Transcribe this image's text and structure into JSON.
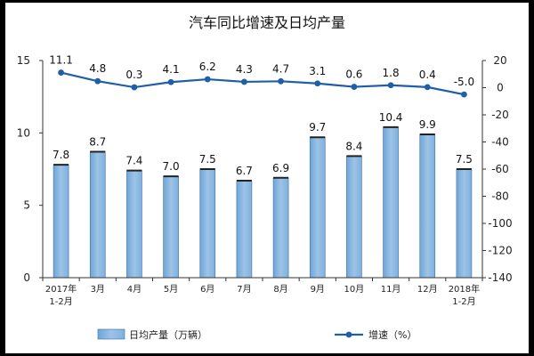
{
  "chart_data": {
    "type": "bar",
    "title": "汽车同比增速及日均产量",
    "categories": [
      [
        "2017年",
        "1-2月"
      ],
      [
        "3月"
      ],
      [
        "4月"
      ],
      [
        "5月"
      ],
      [
        "6月"
      ],
      [
        "7月"
      ],
      [
        "8月"
      ],
      [
        "9月"
      ],
      [
        "10月"
      ],
      [
        "11月"
      ],
      [
        "12月"
      ],
      [
        "2018年",
        "1-2月"
      ]
    ],
    "series": [
      {
        "name": "日均产量（万辆）",
        "type": "bar",
        "axis": "left",
        "values": [
          7.8,
          8.7,
          7.4,
          7.0,
          7.5,
          6.7,
          6.9,
          9.7,
          8.4,
          10.4,
          9.9,
          7.5
        ],
        "labels": [
          "7.8",
          "8.7",
          "7.4",
          "7.0",
          "7.5",
          "6.7",
          "6.9",
          "9.7",
          "8.4",
          "10.4",
          "9.9",
          "7.5"
        ],
        "color": "#9dc3e6"
      },
      {
        "name": "增速（%）",
        "type": "line",
        "axis": "right",
        "values": [
          11.1,
          4.8,
          0.3,
          4.1,
          6.2,
          4.3,
          4.7,
          3.1,
          0.6,
          1.8,
          0.4,
          -5.0
        ],
        "labels": [
          "11.1",
          "4.8",
          "0.3",
          "4.1",
          "6.2",
          "4.3",
          "4.7",
          "3.1",
          "0.6",
          "1.8",
          "0.4",
          "-5.0"
        ],
        "color": "#1f5fa8"
      }
    ],
    "y_left": {
      "range": [
        0,
        15
      ],
      "ticks": [
        "0",
        "5",
        "10",
        "15"
      ]
    },
    "y_right": {
      "range": [
        -140,
        20
      ],
      "ticks": [
        "20",
        "0",
        "-20",
        "-40",
        "-60",
        "-80",
        "-100",
        "-120",
        "-140"
      ]
    },
    "grid": false,
    "legend_position": "bottom"
  }
}
